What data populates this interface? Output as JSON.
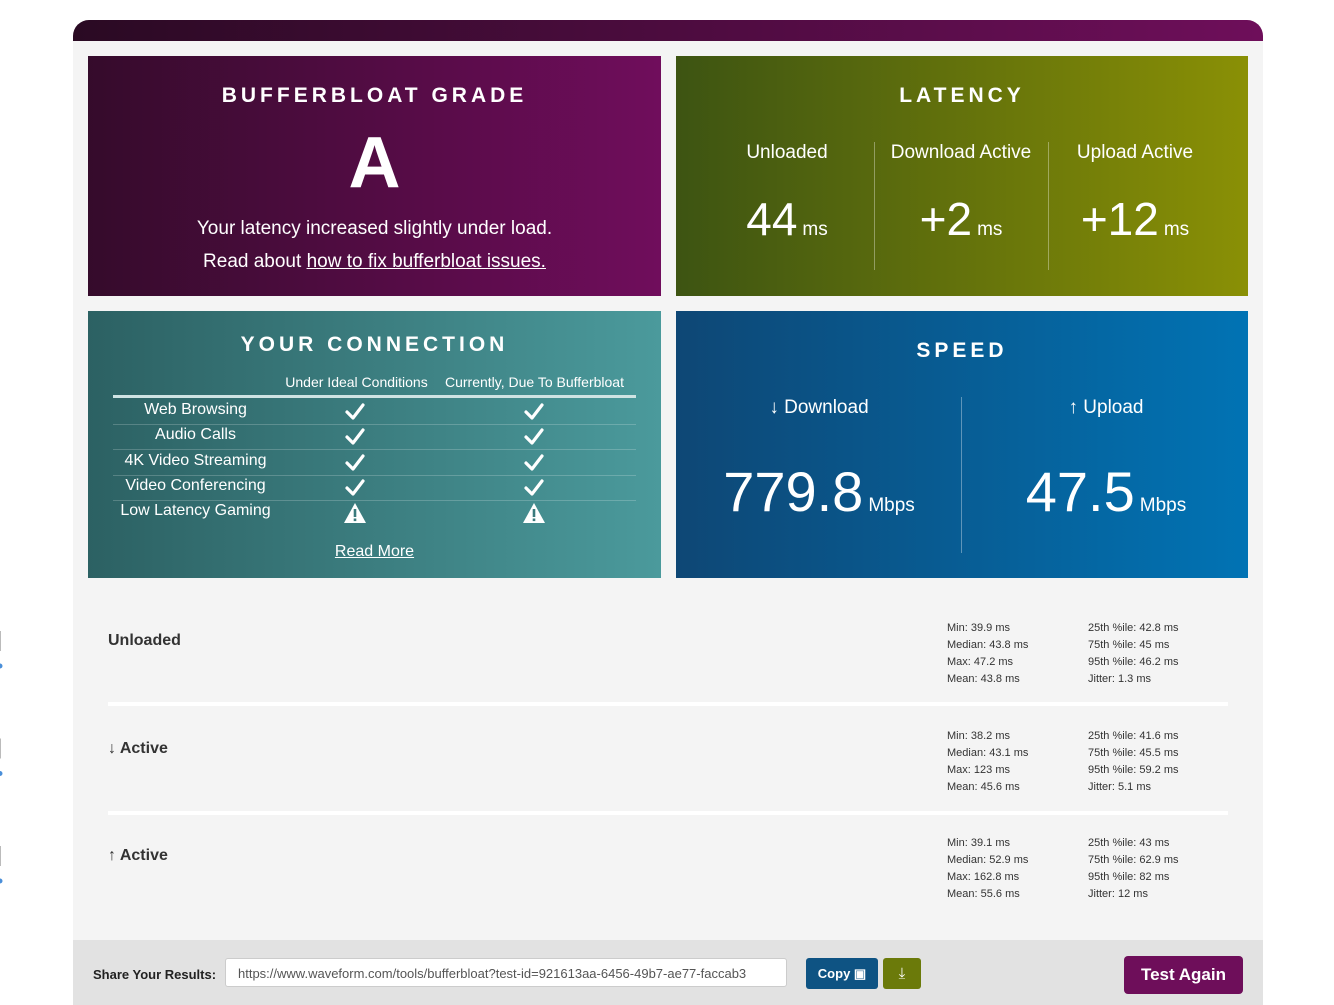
{
  "grade": {
    "title": "BUFFERBLOAT GRADE",
    "grade": "A",
    "message": "Your latency increased slightly under load.",
    "link_prefix": "Read about",
    "link_text": "how to fix bufferbloat issues."
  },
  "latency": {
    "title": "LATENCY",
    "columns": [
      {
        "label": "Unloaded",
        "value": "44",
        "unit": "ms"
      },
      {
        "label": "Download Active",
        "value": "+2",
        "unit": "ms"
      },
      {
        "label": "Upload Active",
        "value": "+12",
        "unit": "ms"
      }
    ]
  },
  "connection": {
    "title": "YOUR CONNECTION",
    "headers": [
      "Under Ideal Conditions",
      "Currently, Due To Bufferbloat"
    ],
    "rows": [
      {
        "activity": "Web Browsing",
        "ideal": true,
        "current": true
      },
      {
        "activity": "Audio Calls",
        "ideal": true,
        "current": true
      },
      {
        "activity": "4K Video Streaming",
        "ideal": true,
        "current": true
      },
      {
        "activity": "Video Conferencing",
        "ideal": true,
        "current": true
      },
      {
        "activity": "Low Latency Gaming",
        "ideal": false,
        "current": false
      }
    ],
    "link": "Read More"
  },
  "speed": {
    "title": "SPEED",
    "columns": [
      {
        "label": "↓ Download",
        "value": 779.8,
        "unit": "Mbps"
      },
      {
        "label": "↑ Upload",
        "value": 47.5,
        "unit": "Mbps"
      }
    ]
  },
  "latency_details": [
    {
      "label": "Unloaded",
      "stats": [
        {
          "label": "Min:",
          "value": 39.9,
          "unit": "ms"
        },
        {
          "label": "Median:",
          "value": 43.8,
          "unit": "ms"
        },
        {
          "label": "Max:",
          "value": 47.2,
          "unit": "ms"
        },
        {
          "label": "Mean:",
          "value": 43.8,
          "unit": "ms"
        },
        {
          "label": "25th %ile:",
          "value": 42.8,
          "unit": "ms"
        },
        {
          "label": "75th %ile:",
          "value": 45,
          "unit": "ms"
        },
        {
          "label": "95th %ile:",
          "value": 46.2,
          "unit": "ms"
        },
        {
          "label": "Jitter:",
          "value": 1.3,
          "unit": "ms"
        }
      ]
    },
    {
      "label": "↓ Active",
      "stats": [
        {
          "label": "Min:",
          "value": 38.2,
          "unit": "ms"
        },
        {
          "label": "Median:",
          "value": 43.1,
          "unit": "ms"
        },
        {
          "label": "Max:",
          "value": 123,
          "unit": "ms"
        },
        {
          "label": "Mean:",
          "value": 45.6,
          "unit": "ms"
        },
        {
          "label": "25th %ile:",
          "value": 41.6,
          "unit": "ms"
        },
        {
          "label": "75th %ile:",
          "value": 45.5,
          "unit": "ms"
        },
        {
          "label": "95th %ile:",
          "value": 59.2,
          "unit": "ms"
        },
        {
          "label": "Jitter:",
          "value": 5.1,
          "unit": "ms"
        }
      ]
    },
    {
      "label": "↑ Active",
      "stats": [
        {
          "label": "Min:",
          "value": 39.1,
          "unit": "ms"
        },
        {
          "label": "Median:",
          "value": 52.9,
          "unit": "ms"
        },
        {
          "label": "Max:",
          "value": 162.8,
          "unit": "ms"
        },
        {
          "label": "Mean:",
          "value": 55.6,
          "unit": "ms"
        },
        {
          "label": "25th %ile:",
          "value": 43,
          "unit": "ms"
        },
        {
          "label": "75th %ile:",
          "value": 62.9,
          "unit": "ms"
        },
        {
          "label": "95th %ile:",
          "value": 82,
          "unit": "ms"
        },
        {
          "label": "Jitter:",
          "value": 12,
          "unit": "ms"
        }
      ]
    }
  ],
  "footer": {
    "share_label": "Share Your Results:",
    "url": "https://www.waveform.com/tools/bufferbloat?test-id=921613aa-6456-49b7-ae77-faccab3",
    "copy": "Copy",
    "button": "Test Again"
  }
}
